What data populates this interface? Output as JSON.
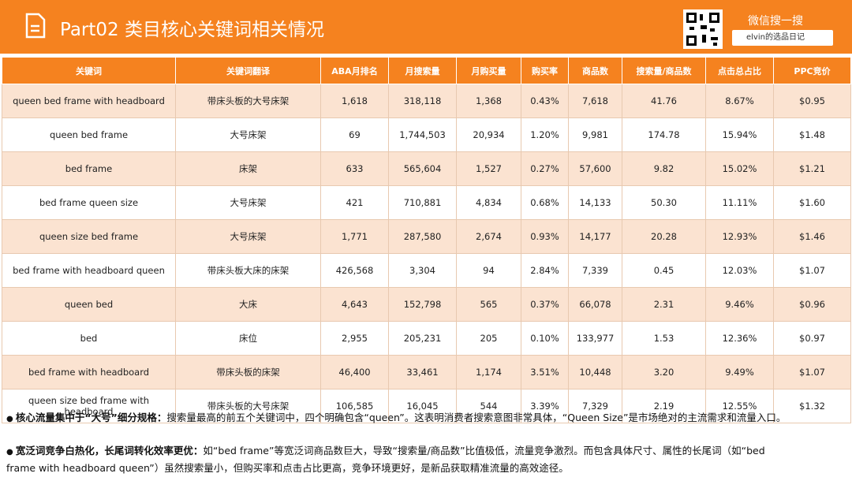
{
  "header": {
    "title": "Part02 类目核心关键词相关情况",
    "wechat": "微信搜一搜",
    "search": "elvin的选品日记"
  },
  "table": {
    "columns": [
      "关键词",
      "关键词翻译",
      "ABA月排名",
      "月搜索量",
      "月购买量",
      "购买率",
      "商品数",
      "搜索量/商品数",
      "点击总占比",
      "PPC竞价"
    ],
    "rows": [
      [
        "queen bed frame with headboard",
        "带床头板的大号床架",
        "1,618",
        "318,118",
        "1,368",
        "0.43%",
        "7,618",
        "41.76",
        "8.67%",
        "$0.95"
      ],
      [
        "queen bed frame",
        "大号床架",
        "69",
        "1,744,503",
        "20,934",
        "1.20%",
        "9,981",
        "174.78",
        "15.94%",
        "$1.48"
      ],
      [
        "bed frame",
        "床架",
        "633",
        "565,604",
        "1,527",
        "0.27%",
        "57,600",
        "9.82",
        "15.02%",
        "$1.21"
      ],
      [
        "bed frame queen size",
        "大号床架",
        "421",
        "710,881",
        "4,834",
        "0.68%",
        "14,133",
        "50.30",
        "11.11%",
        "$1.60"
      ],
      [
        "queen size bed frame",
        "大号床架",
        "1,771",
        "287,580",
        "2,674",
        "0.93%",
        "14,177",
        "20.28",
        "12.93%",
        "$1.46"
      ],
      [
        "bed frame with headboard queen",
        "带床头板大床的床架",
        "426,568",
        "3,304",
        "94",
        "2.84%",
        "7,339",
        "0.45",
        "12.03%",
        "$1.07"
      ],
      [
        "queen bed",
        "大床",
        "4,643",
        "152,798",
        "565",
        "0.37%",
        "66,078",
        "2.31",
        "9.46%",
        "$0.96"
      ],
      [
        "bed",
        "床位",
        "2,955",
        "205,231",
        "205",
        "0.10%",
        "133,977",
        "1.53",
        "12.36%",
        "$0.97"
      ],
      [
        "bed frame with headboard",
        "带床头板的床架",
        "46,400",
        "33,461",
        "1,174",
        "3.51%",
        "10,448",
        "3.20",
        "9.49%",
        "$1.07"
      ],
      [
        "queen size bed frame with headboard",
        "带床头板的大号床架",
        "106,585",
        "16,045",
        "544",
        "3.39%",
        "7,329",
        "2.19",
        "12.55%",
        "$1.32"
      ]
    ]
  },
  "notes": [
    {
      "bold": "核心流量集中于“大号”细分规格：",
      "text": "搜索量最高的前五个关键词中，四个明确包含“queen”。这表明消费者搜索意图非常具体，“Queen Size”是市场绝对的主流需求和流量入口。"
    },
    {
      "bold": "宽泛词竞争白热化，长尾词转化效率更优：",
      "text": "如“bed frame”等宽泛词商品数巨大，导致“搜索量/商品数”比值极低，流量竞争激烈。而包含具体尺寸、属性的长尾词（如“bed frame with headboard queen”）虽然搜索量小，但购买率和点击占比更高，竞争环境更好，是新品获取精准流量的高效途径。"
    }
  ]
}
